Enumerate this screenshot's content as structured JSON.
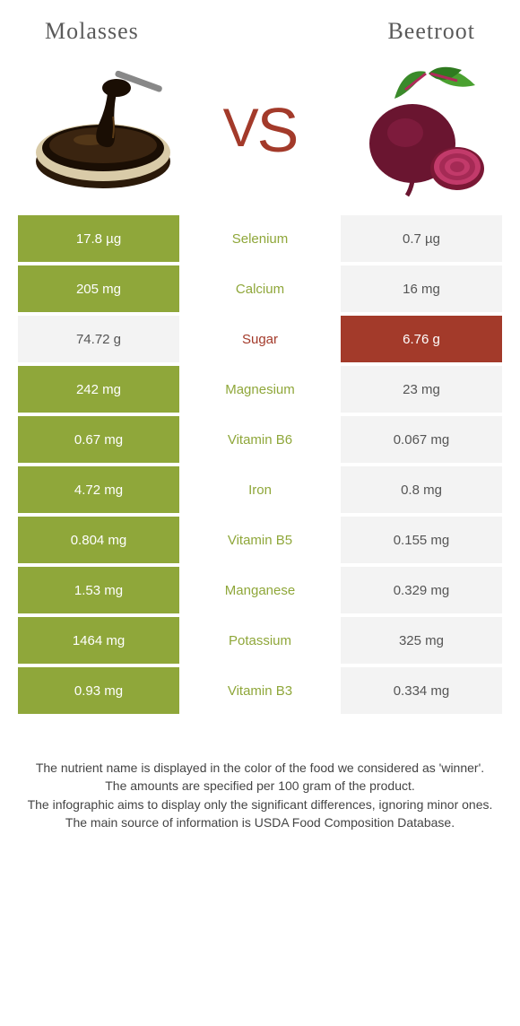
{
  "titles": {
    "left": "Molasses",
    "right": "Beetroot"
  },
  "vs_text": "VS",
  "colors": {
    "molasses_bar": "#8fa73a",
    "beetroot_bar": "#a33a2a",
    "neutral_bg": "#f3f3f3",
    "text_on_bar": "#ffffff",
    "text_on_neutral": "#555555",
    "nutrient_molasses": "#8fa73a",
    "nutrient_beetroot": "#a33a2a"
  },
  "rows": [
    {
      "nutrient": "Selenium",
      "winner": "molasses",
      "left": "17.8 µg",
      "right": "0.7 µg"
    },
    {
      "nutrient": "Calcium",
      "winner": "molasses",
      "left": "205 mg",
      "right": "16 mg"
    },
    {
      "nutrient": "Sugar",
      "winner": "beetroot",
      "left": "74.72 g",
      "right": "6.76 g"
    },
    {
      "nutrient": "Magnesium",
      "winner": "molasses",
      "left": "242 mg",
      "right": "23 mg"
    },
    {
      "nutrient": "Vitamin B6",
      "winner": "molasses",
      "left": "0.67 mg",
      "right": "0.067 mg"
    },
    {
      "nutrient": "Iron",
      "winner": "molasses",
      "left": "4.72 mg",
      "right": "0.8 mg"
    },
    {
      "nutrient": "Vitamin B5",
      "winner": "molasses",
      "left": "0.804 mg",
      "right": "0.155 mg"
    },
    {
      "nutrient": "Manganese",
      "winner": "molasses",
      "left": "1.53 mg",
      "right": "0.329 mg"
    },
    {
      "nutrient": "Potassium",
      "winner": "molasses",
      "left": "1464 mg",
      "right": "325 mg"
    },
    {
      "nutrient": "Vitamin B3",
      "winner": "molasses",
      "left": "0.93 mg",
      "right": "0.334 mg"
    }
  ],
  "footer": [
    "The nutrient name is displayed in the color of the food we considered as 'winner'.",
    "The amounts are specified per 100 gram of the product.",
    "The infographic aims to display only the significant differences, ignoring minor ones.",
    "The main source of information is USDA Food Composition Database."
  ]
}
